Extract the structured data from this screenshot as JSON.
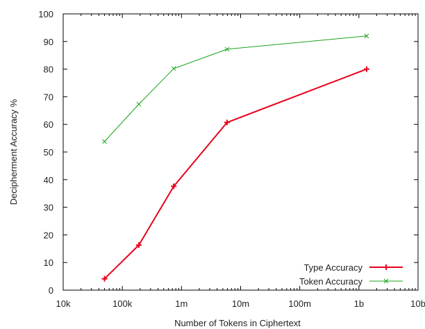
{
  "chart_data": {
    "type": "line",
    "title": "",
    "xlabel": "Number of Tokens in Ciphertext",
    "ylabel": "Decipherment Accuracy %",
    "x_scale": "log",
    "xlim": [
      10000,
      10000000000
    ],
    "ylim": [
      0,
      100
    ],
    "x_ticks": [
      {
        "value": 10000,
        "label": "10k"
      },
      {
        "value": 100000,
        "label": "100k"
      },
      {
        "value": 1000000,
        "label": "1m"
      },
      {
        "value": 10000000,
        "label": "10m"
      },
      {
        "value": 100000000,
        "label": "100m"
      },
      {
        "value": 1000000000,
        "label": "1b"
      },
      {
        "value": 10000000000,
        "label": "10b"
      }
    ],
    "y_ticks": [
      {
        "value": 0,
        "label": "0"
      },
      {
        "value": 10,
        "label": "10"
      },
      {
        "value": 20,
        "label": "20"
      },
      {
        "value": 30,
        "label": "30"
      },
      {
        "value": 40,
        "label": "40"
      },
      {
        "value": 50,
        "label": "50"
      },
      {
        "value": 60,
        "label": "60"
      },
      {
        "value": 70,
        "label": "70"
      },
      {
        "value": 80,
        "label": "80"
      },
      {
        "value": 90,
        "label": "90"
      },
      {
        "value": 100,
        "label": "100"
      }
    ],
    "grid": false,
    "legend_position": "bottom-right",
    "series": [
      {
        "name": "Type Accuracy",
        "color": "#e8001c",
        "marker": "plus",
        "x": [
          50000,
          190000,
          740000,
          5900000,
          1350000000
        ],
        "y": [
          4.1,
          16.3,
          37.6,
          60.7,
          80.0
        ]
      },
      {
        "name": "Token Accuracy",
        "color": "#1aa31a",
        "marker": "cross",
        "x": [
          50000,
          190000,
          740000,
          5900000,
          1350000000
        ],
        "y": [
          53.8,
          67.3,
          80.2,
          87.2,
          92.0
        ]
      }
    ]
  }
}
